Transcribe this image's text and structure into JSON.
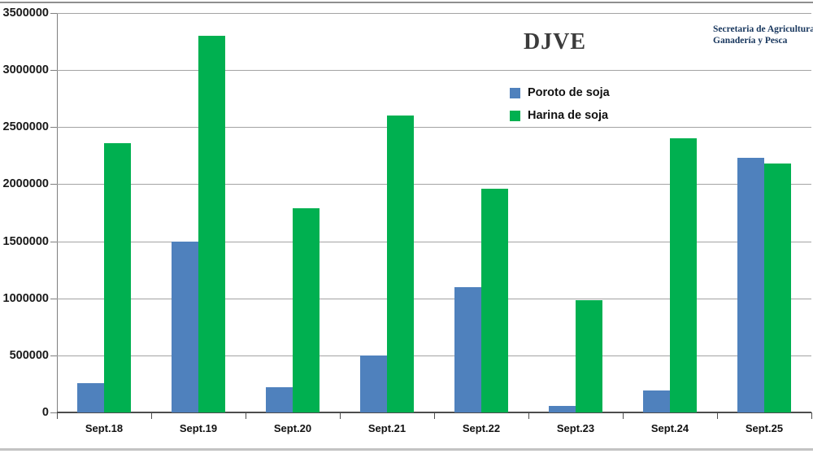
{
  "header": {
    "title": "DJVE",
    "org_line1": "Secretaria de Agricultura",
    "org_line2": "Ganadería y Pesca"
  },
  "chart_data": {
    "type": "bar",
    "title": "DJVE",
    "categories": [
      "Sept.18",
      "Sept.19",
      "Sept.20",
      "Sept.21",
      "Sept.22",
      "Sept.23",
      "Sept.24",
      "Sept.25"
    ],
    "series": [
      {
        "name": "Poroto de soja",
        "color": "#4f81bd",
        "values": [
          260000,
          1500000,
          220000,
          500000,
          1100000,
          55000,
          195000,
          2230000
        ]
      },
      {
        "name": "Harina de soja",
        "color": "#00b050",
        "values": [
          2360000,
          3300000,
          1790000,
          2600000,
          1960000,
          985000,
          2400000,
          2180000
        ]
      }
    ],
    "xlabel": "",
    "ylabel": "",
    "y_axis": {
      "min": 0,
      "max": 3500000,
      "step": 500000,
      "ticks": [
        "0",
        "500000",
        "1000000",
        "1500000",
        "2000000",
        "2500000",
        "3000000",
        "3500000"
      ]
    },
    "grid": true,
    "legend_position": "inside-top-center"
  },
  "colors": {
    "series_blue": "#4f81bd",
    "series_green": "#00b050",
    "gridline": "#a3a3a3",
    "axis": "#4d4d4d",
    "title_text": "#3b3b3b",
    "org_text": "#17365d"
  }
}
